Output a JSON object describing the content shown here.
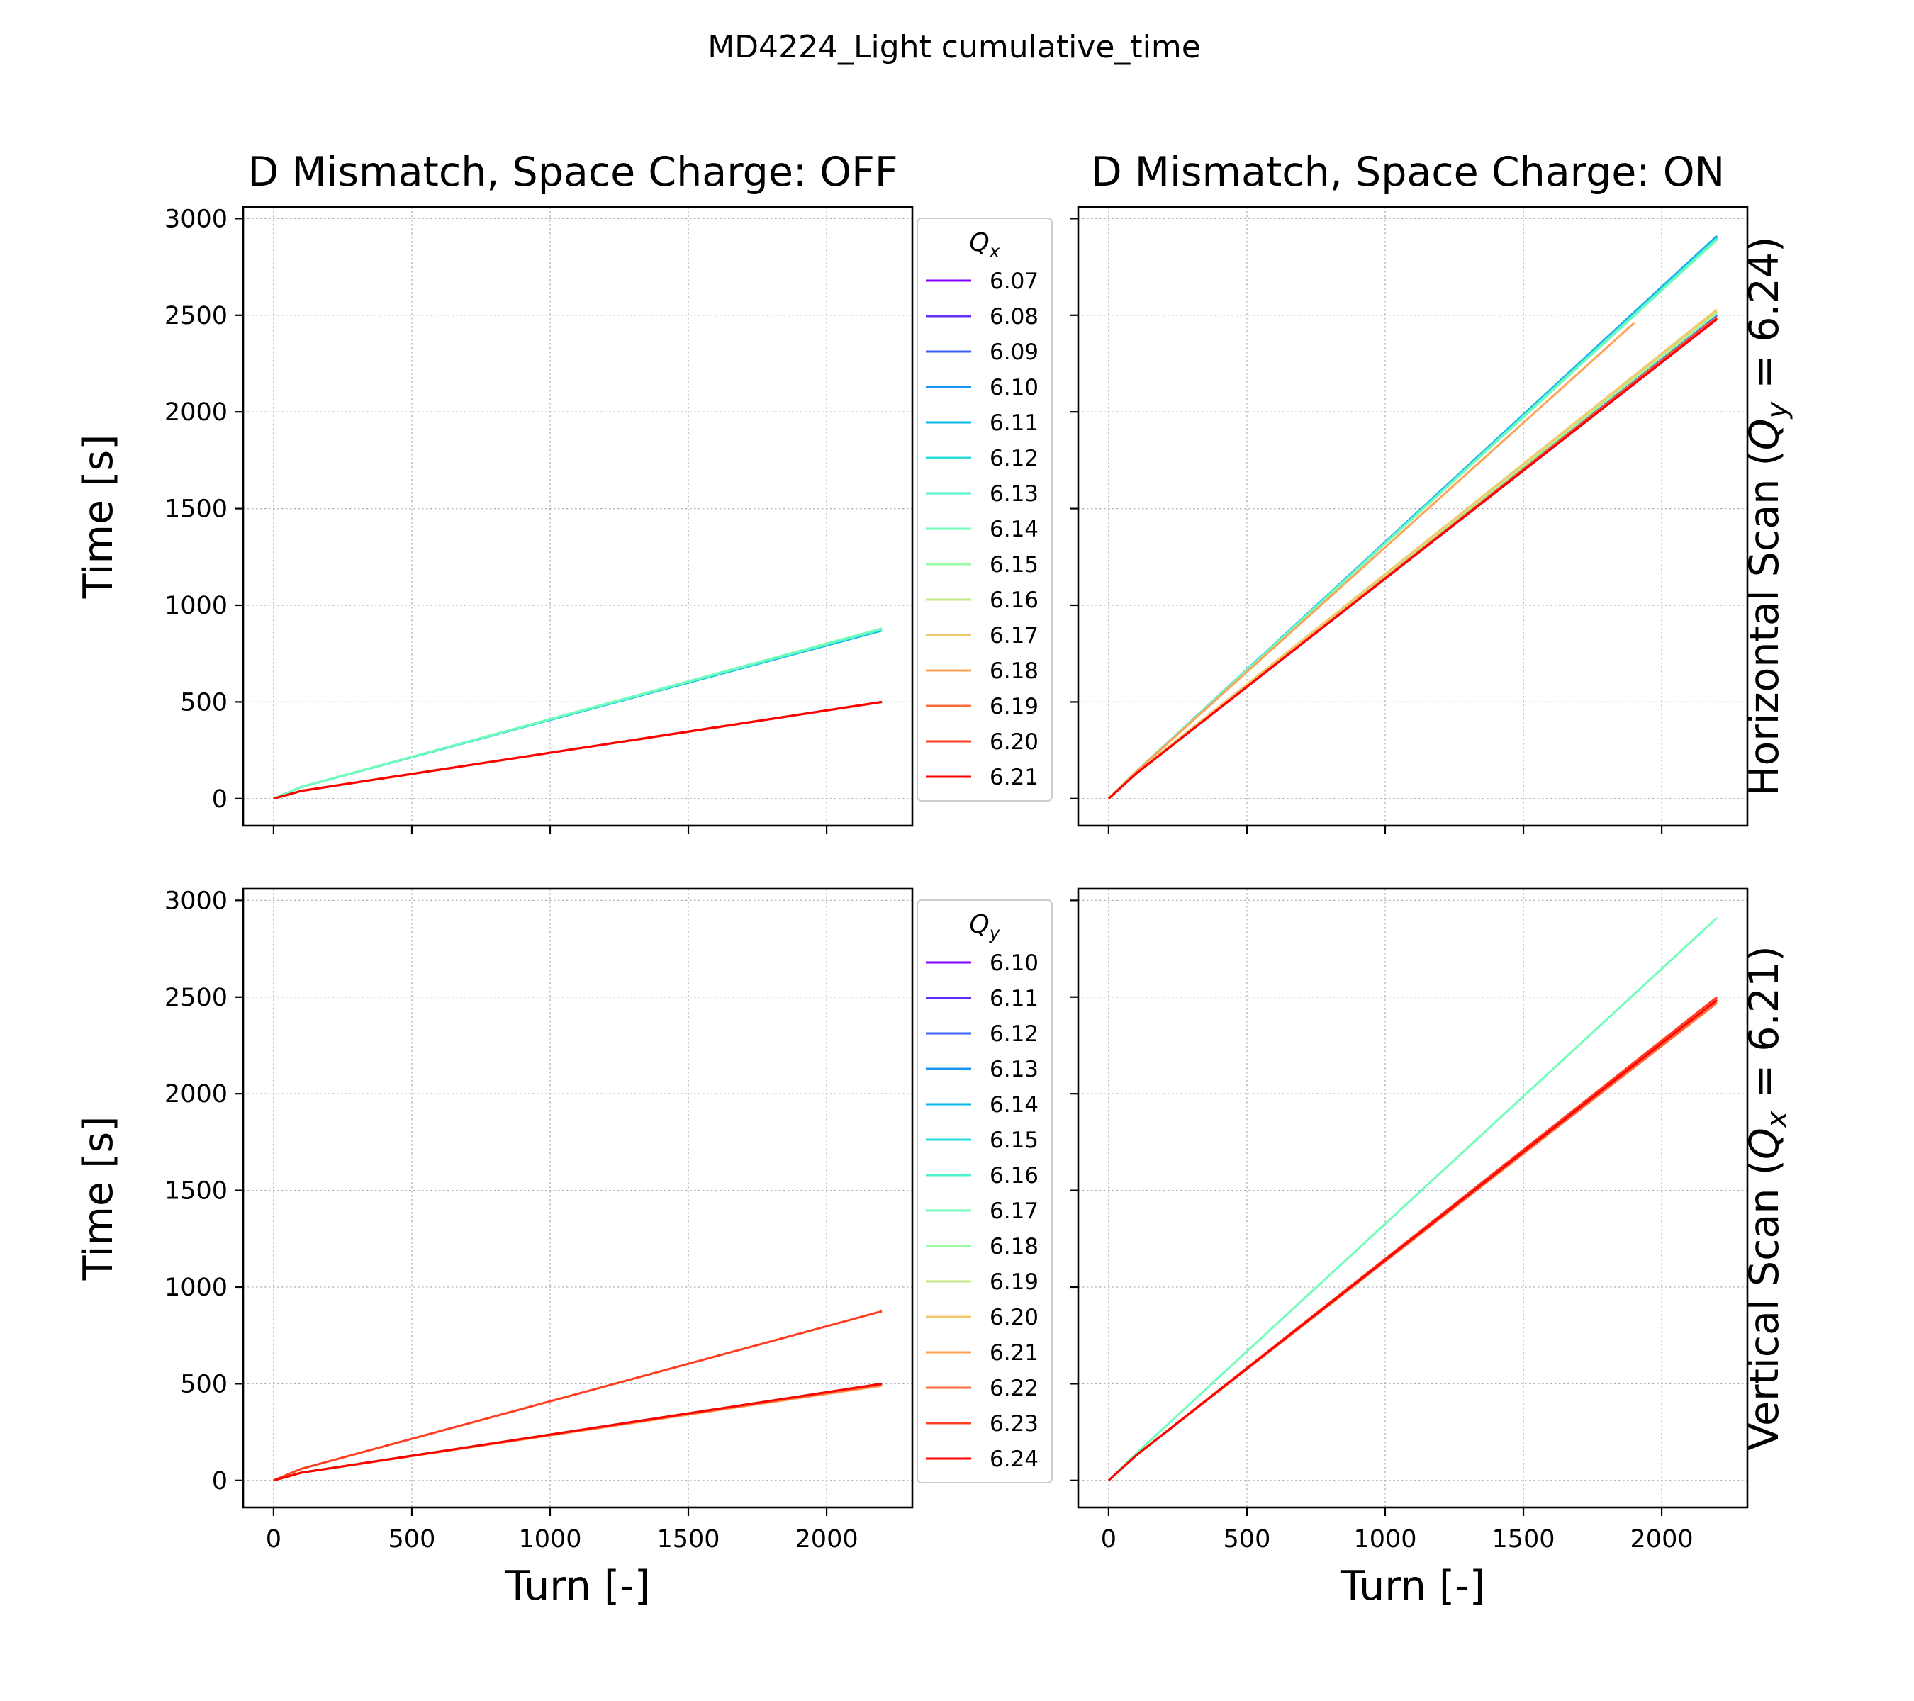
{
  "figure": {
    "suptitle": "MD4224_Light cumulative_time",
    "col_titles": [
      "D Mismatch, Space Charge: OFF",
      "D Mismatch, Space Charge: ON"
    ],
    "row_labels": [
      {
        "prefix": "Horizontal Scan (",
        "sym": "Q",
        "sub": "y",
        "suffix": " = 6.24)"
      },
      {
        "prefix": "Vertical Scan (",
        "sym": "Q",
        "sub": "x",
        "suffix": " = 6.21)"
      }
    ],
    "xlabel": "Turn [-]",
    "ylabel": "Time [s]"
  },
  "legends": [
    {
      "title_sym": "Q",
      "title_sub": "x",
      "entries": [
        "6.07",
        "6.08",
        "6.09",
        "6.10",
        "6.11",
        "6.12",
        "6.13",
        "6.14",
        "6.15",
        "6.16",
        "6.17",
        "6.18",
        "6.19",
        "6.20",
        "6.21"
      ]
    },
    {
      "title_sym": "Q",
      "title_sub": "y",
      "entries": [
        "6.10",
        "6.11",
        "6.12",
        "6.13",
        "6.14",
        "6.15",
        "6.16",
        "6.17",
        "6.18",
        "6.19",
        "6.20",
        "6.21",
        "6.22",
        "6.23",
        "6.24"
      ]
    }
  ],
  "chart_data": [
    {
      "type": "line",
      "title": "D Mismatch, Space Charge: OFF",
      "xlabel": "",
      "ylabel": "Time [s]",
      "xlim": [
        -110,
        2310
      ],
      "ylim": [
        -140,
        3060
      ],
      "xticks": [
        0,
        500,
        1000,
        1500,
        2000
      ],
      "yticks": [
        0,
        500,
        1000,
        1500,
        2000,
        2500,
        3000
      ],
      "xtick_labels_visible": false,
      "ytick_labels_visible": true,
      "grid": true,
      "legend": "outside-right",
      "series": [
        {
          "name": "6.07",
          "color": "#8000ff",
          "x": [
            0,
            100,
            2200
          ],
          "y": [
            0,
            40,
            500
          ]
        },
        {
          "name": "6.08",
          "color": "#5f30fe",
          "x": [
            0,
            100,
            2200
          ],
          "y": [
            0,
            40,
            500
          ]
        },
        {
          "name": "6.09",
          "color": "#3c61fa",
          "x": [
            0,
            100,
            2200
          ],
          "y": [
            0,
            40,
            500
          ]
        },
        {
          "name": "6.10",
          "color": "#1996f3",
          "x": [
            0,
            100,
            2200
          ],
          "y": [
            0,
            60,
            870
          ]
        },
        {
          "name": "6.11",
          "color": "#07b8e9",
          "x": [
            0,
            100,
            2200
          ],
          "y": [
            0,
            60,
            870
          ]
        },
        {
          "name": "6.12",
          "color": "#2adddd",
          "x": [
            0,
            100,
            2200
          ],
          "y": [
            0,
            60,
            875
          ]
        },
        {
          "name": "6.13",
          "color": "#4df3ce",
          "x": [
            0,
            100,
            2200
          ],
          "y": [
            0,
            60,
            875
          ]
        },
        {
          "name": "6.14",
          "color": "#73fdba",
          "x": [
            0,
            100,
            2200
          ],
          "y": [
            0,
            60,
            880
          ]
        },
        {
          "name": "6.15",
          "color": "#98fca4",
          "x": [
            0,
            100,
            2200
          ],
          "y": [
            0,
            40,
            500
          ]
        },
        {
          "name": "6.16",
          "color": "#c1e785",
          "x": [
            0,
            100,
            2200
          ],
          "y": [
            0,
            40,
            500
          ]
        },
        {
          "name": "6.17",
          "color": "#f0c96c",
          "x": [
            0,
            100,
            2200
          ],
          "y": [
            0,
            40,
            500
          ]
        },
        {
          "name": "6.18",
          "color": "#ffa256",
          "x": [
            0,
            100,
            2200
          ],
          "y": [
            0,
            40,
            500
          ]
        },
        {
          "name": "6.19",
          "color": "#ff6e3a",
          "x": [
            0,
            100,
            2200
          ],
          "y": [
            0,
            40,
            500
          ]
        },
        {
          "name": "6.20",
          "color": "#ff3d20",
          "x": [
            0,
            100,
            2200
          ],
          "y": [
            0,
            40,
            500
          ]
        },
        {
          "name": "6.21",
          "color": "#ff0000",
          "x": [
            0,
            100,
            2200
          ],
          "y": [
            0,
            40,
            500
          ]
        }
      ]
    },
    {
      "type": "line",
      "title": "D Mismatch, Space Charge: ON",
      "xlabel": "",
      "ylabel": "",
      "xlim": [
        -110,
        2310
      ],
      "ylim": [
        -140,
        3060
      ],
      "xticks": [
        0,
        500,
        1000,
        1500,
        2000
      ],
      "yticks": [
        0,
        500,
        1000,
        1500,
        2000,
        2500,
        3000
      ],
      "xtick_labels_visible": false,
      "ytick_labels_visible": false,
      "grid": true,
      "series": [
        {
          "name": "6.07",
          "color": "#8000ff",
          "x": [
            0,
            100,
            2200
          ],
          "y": [
            0,
            130,
            2480
          ]
        },
        {
          "name": "6.08",
          "color": "#5f30fe",
          "x": [
            0,
            100,
            2200
          ],
          "y": [
            0,
            130,
            2490
          ]
        },
        {
          "name": "6.09",
          "color": "#3c61fa",
          "x": [
            0,
            100,
            2200
          ],
          "y": [
            0,
            130,
            2500
          ]
        },
        {
          "name": "6.10",
          "color": "#1996f3",
          "x": [
            0,
            100,
            2200
          ],
          "y": [
            0,
            140,
            2910
          ]
        },
        {
          "name": "6.11",
          "color": "#07b8e9",
          "x": [
            0,
            100,
            2200
          ],
          "y": [
            0,
            140,
            2905
          ]
        },
        {
          "name": "6.12",
          "color": "#2adddd",
          "x": [
            0,
            100,
            2200
          ],
          "y": [
            0,
            140,
            2900
          ]
        },
        {
          "name": "6.13",
          "color": "#4df3ce",
          "x": [
            0,
            100,
            2200
          ],
          "y": [
            0,
            140,
            2895
          ]
        },
        {
          "name": "6.14",
          "color": "#73fdba",
          "x": [
            0,
            100,
            2200
          ],
          "y": [
            0,
            140,
            2890
          ]
        },
        {
          "name": "6.15",
          "color": "#98fca4",
          "x": [
            0,
            100,
            2200
          ],
          "y": [
            0,
            135,
            2510
          ]
        },
        {
          "name": "6.16",
          "color": "#c1e785",
          "x": [
            0,
            100,
            2200
          ],
          "y": [
            0,
            135,
            2520
          ]
        },
        {
          "name": "6.17",
          "color": "#f0c96c",
          "x": [
            0,
            100,
            2200
          ],
          "y": [
            0,
            135,
            2530
          ]
        },
        {
          "name": "6.18",
          "color": "#ffa256",
          "x": [
            0,
            100,
            1900
          ],
          "y": [
            0,
            140,
            2460
          ]
        },
        {
          "name": "6.19",
          "color": "#ff6e3a",
          "x": [
            0,
            100,
            2200
          ],
          "y": [
            0,
            130,
            2490
          ]
        },
        {
          "name": "6.20",
          "color": "#ff3d20",
          "x": [
            0,
            100,
            2200
          ],
          "y": [
            0,
            130,
            2485
          ]
        },
        {
          "name": "6.21",
          "color": "#ff0000",
          "x": [
            0,
            100,
            2200
          ],
          "y": [
            0,
            130,
            2480
          ]
        }
      ]
    },
    {
      "type": "line",
      "title": "",
      "xlabel": "Turn [-]",
      "ylabel": "Time [s]",
      "xlim": [
        -110,
        2310
      ],
      "ylim": [
        -140,
        3060
      ],
      "xticks": [
        0,
        500,
        1000,
        1500,
        2000
      ],
      "yticks": [
        0,
        500,
        1000,
        1500,
        2000,
        2500,
        3000
      ],
      "xtick_labels_visible": true,
      "ytick_labels_visible": true,
      "grid": true,
      "legend": "outside-right",
      "series": [
        {
          "name": "6.10",
          "color": "#8000ff",
          "x": [
            0,
            100,
            2200
          ],
          "y": [
            0,
            40,
            500
          ]
        },
        {
          "name": "6.11",
          "color": "#5f30fe",
          "x": [
            0,
            100,
            2200
          ],
          "y": [
            0,
            40,
            500
          ]
        },
        {
          "name": "6.12",
          "color": "#3c61fa",
          "x": [
            0,
            100,
            2200
          ],
          "y": [
            0,
            40,
            500
          ]
        },
        {
          "name": "6.13",
          "color": "#1996f3",
          "x": [
            0,
            100,
            2200
          ],
          "y": [
            0,
            40,
            500
          ]
        },
        {
          "name": "6.14",
          "color": "#07b8e9",
          "x": [
            0,
            100,
            2200
          ],
          "y": [
            0,
            40,
            500
          ]
        },
        {
          "name": "6.15",
          "color": "#2adddd",
          "x": [
            0,
            100,
            2200
          ],
          "y": [
            0,
            40,
            500
          ]
        },
        {
          "name": "6.16",
          "color": "#4df3ce",
          "x": [
            0,
            100,
            2200
          ],
          "y": [
            0,
            40,
            500
          ]
        },
        {
          "name": "6.17",
          "color": "#73fdba",
          "x": [
            0,
            100,
            2200
          ],
          "y": [
            0,
            40,
            500
          ]
        },
        {
          "name": "6.18",
          "color": "#98fca4",
          "x": [
            0,
            100,
            2200
          ],
          "y": [
            0,
            40,
            500
          ]
        },
        {
          "name": "6.19",
          "color": "#c1e785",
          "x": [
            0,
            100,
            2200
          ],
          "y": [
            0,
            40,
            500
          ]
        },
        {
          "name": "6.20",
          "color": "#f0c96c",
          "x": [
            0,
            100,
            2200
          ],
          "y": [
            0,
            40,
            495
          ]
        },
        {
          "name": "6.21",
          "color": "#ffa256",
          "x": [
            0,
            100,
            2200
          ],
          "y": [
            0,
            40,
            490
          ]
        },
        {
          "name": "6.22",
          "color": "#ff6e3a",
          "x": [
            0,
            100,
            2200
          ],
          "y": [
            0,
            40,
            495
          ]
        },
        {
          "name": "6.23",
          "color": "#ff3d20",
          "x": [
            0,
            100,
            2200
          ],
          "y": [
            0,
            60,
            875
          ]
        },
        {
          "name": "6.24",
          "color": "#ff0000",
          "x": [
            0,
            100,
            2200
          ],
          "y": [
            0,
            40,
            500
          ]
        }
      ]
    },
    {
      "type": "line",
      "title": "",
      "xlabel": "Turn [-]",
      "ylabel": "",
      "xlim": [
        -110,
        2310
      ],
      "ylim": [
        -140,
        3060
      ],
      "xticks": [
        0,
        500,
        1000,
        1500,
        2000
      ],
      "yticks": [
        0,
        500,
        1000,
        1500,
        2000,
        2500,
        3000
      ],
      "xtick_labels_visible": true,
      "ytick_labels_visible": false,
      "grid": true,
      "series": [
        {
          "name": "6.10",
          "color": "#8000ff",
          "x": [
            0,
            100,
            2200
          ],
          "y": [
            0,
            130,
            2480
          ]
        },
        {
          "name": "6.11",
          "color": "#5f30fe",
          "x": [
            0,
            100,
            2200
          ],
          "y": [
            0,
            130,
            2480
          ]
        },
        {
          "name": "6.12",
          "color": "#3c61fa",
          "x": [
            0,
            100,
            2200
          ],
          "y": [
            0,
            130,
            2480
          ]
        },
        {
          "name": "6.13",
          "color": "#1996f3",
          "x": [
            0,
            100,
            2200
          ],
          "y": [
            0,
            130,
            2480
          ]
        },
        {
          "name": "6.14",
          "color": "#07b8e9",
          "x": [
            0,
            100,
            2200
          ],
          "y": [
            0,
            130,
            2480
          ]
        },
        {
          "name": "6.15",
          "color": "#2adddd",
          "x": [
            0,
            100,
            2200
          ],
          "y": [
            0,
            130,
            2480
          ]
        },
        {
          "name": "6.16",
          "color": "#4df3ce",
          "x": [
            0,
            100,
            2200
          ],
          "y": [
            0,
            130,
            2480
          ]
        },
        {
          "name": "6.17",
          "color": "#73fdba",
          "x": [
            0,
            100,
            2200
          ],
          "y": [
            0,
            140,
            2910
          ]
        },
        {
          "name": "6.18",
          "color": "#98fca4",
          "x": [
            0,
            100,
            2200
          ],
          "y": [
            0,
            130,
            2480
          ]
        },
        {
          "name": "6.19",
          "color": "#c1e785",
          "x": [
            0,
            100,
            2200
          ],
          "y": [
            0,
            130,
            2480
          ]
        },
        {
          "name": "6.20",
          "color": "#f0c96c",
          "x": [
            0,
            100,
            2200
          ],
          "y": [
            0,
            130,
            2480
          ]
        },
        {
          "name": "6.21",
          "color": "#ffa256",
          "x": [
            0,
            100,
            2200
          ],
          "y": [
            0,
            130,
            2480
          ]
        },
        {
          "name": "6.22",
          "color": "#ff6e3a",
          "x": [
            0,
            100,
            2200
          ],
          "y": [
            0,
            130,
            2470
          ]
        },
        {
          "name": "6.23",
          "color": "#ff3d20",
          "x": [
            0,
            100,
            2200
          ],
          "y": [
            0,
            130,
            2500
          ]
        },
        {
          "name": "6.24",
          "color": "#ff0000",
          "x": [
            0,
            100,
            2200
          ],
          "y": [
            0,
            130,
            2485
          ]
        }
      ]
    }
  ]
}
